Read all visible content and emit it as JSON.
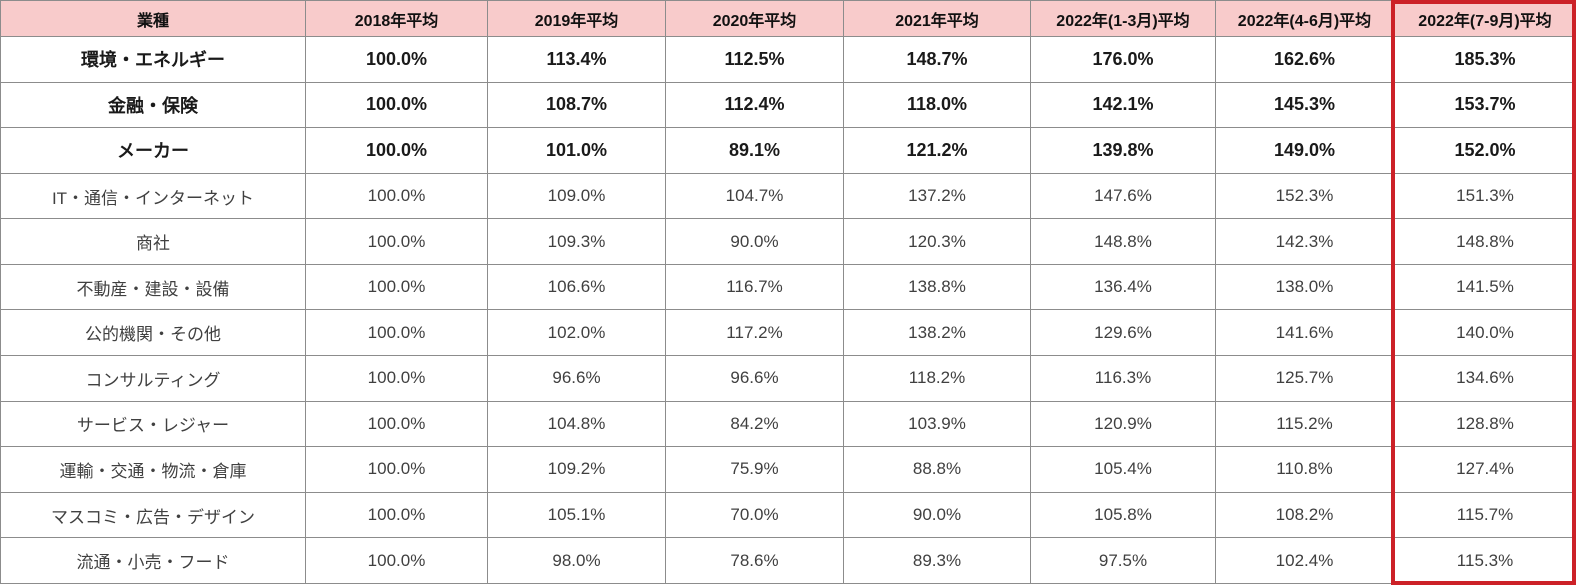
{
  "chart_data": {
    "type": "table",
    "title": "",
    "columns": [
      "業種",
      "2018年平均",
      "2019年平均",
      "2020年平均",
      "2021年平均",
      "2022年(1-3月)平均",
      "2022年(4-6月)平均",
      "2022年(7-9月)平均"
    ],
    "highlighted_column": "2022年(7-9月)平均",
    "rows": [
      {
        "label": "環境・エネルギー",
        "bold": true,
        "values": [
          "100.0%",
          "113.4%",
          "112.5%",
          "148.7%",
          "176.0%",
          "162.6%",
          "185.3%"
        ]
      },
      {
        "label": "金融・保険",
        "bold": true,
        "values": [
          "100.0%",
          "108.7%",
          "112.4%",
          "118.0%",
          "142.1%",
          "145.3%",
          "153.7%"
        ]
      },
      {
        "label": "メーカー",
        "bold": true,
        "values": [
          "100.0%",
          "101.0%",
          "89.1%",
          "121.2%",
          "139.8%",
          "149.0%",
          "152.0%"
        ]
      },
      {
        "label": "IT・通信・インターネット",
        "bold": false,
        "values": [
          "100.0%",
          "109.0%",
          "104.7%",
          "137.2%",
          "147.6%",
          "152.3%",
          "151.3%"
        ]
      },
      {
        "label": "商社",
        "bold": false,
        "values": [
          "100.0%",
          "109.3%",
          "90.0%",
          "120.3%",
          "148.8%",
          "142.3%",
          "148.8%"
        ]
      },
      {
        "label": "不動産・建設・設備",
        "bold": false,
        "values": [
          "100.0%",
          "106.6%",
          "116.7%",
          "138.8%",
          "136.4%",
          "138.0%",
          "141.5%"
        ]
      },
      {
        "label": "公的機関・その他",
        "bold": false,
        "values": [
          "100.0%",
          "102.0%",
          "117.2%",
          "138.2%",
          "129.6%",
          "141.6%",
          "140.0%"
        ]
      },
      {
        "label": "コンサルティング",
        "bold": false,
        "values": [
          "100.0%",
          "96.6%",
          "96.6%",
          "118.2%",
          "116.3%",
          "125.7%",
          "134.6%"
        ]
      },
      {
        "label": "サービス・レジャー",
        "bold": false,
        "values": [
          "100.0%",
          "104.8%",
          "84.2%",
          "103.9%",
          "120.9%",
          "115.2%",
          "128.8%"
        ]
      },
      {
        "label": "運輸・交通・物流・倉庫",
        "bold": false,
        "values": [
          "100.0%",
          "109.2%",
          "75.9%",
          "88.8%",
          "105.4%",
          "110.8%",
          "127.4%"
        ]
      },
      {
        "label": "マスコミ・広告・デザイン",
        "bold": false,
        "values": [
          "100.0%",
          "105.1%",
          "70.0%",
          "90.0%",
          "105.8%",
          "108.2%",
          "115.7%"
        ]
      },
      {
        "label": "流通・小売・フード",
        "bold": false,
        "values": [
          "100.0%",
          "98.0%",
          "78.6%",
          "89.3%",
          "97.5%",
          "102.4%",
          "115.3%"
        ]
      }
    ]
  },
  "colors": {
    "header_background": "#f8cbcb",
    "highlight_border": "#cc2127",
    "grid_border": "#8c8c8c",
    "bold_text": "#1a1a1a",
    "regular_text": "#404040"
  }
}
